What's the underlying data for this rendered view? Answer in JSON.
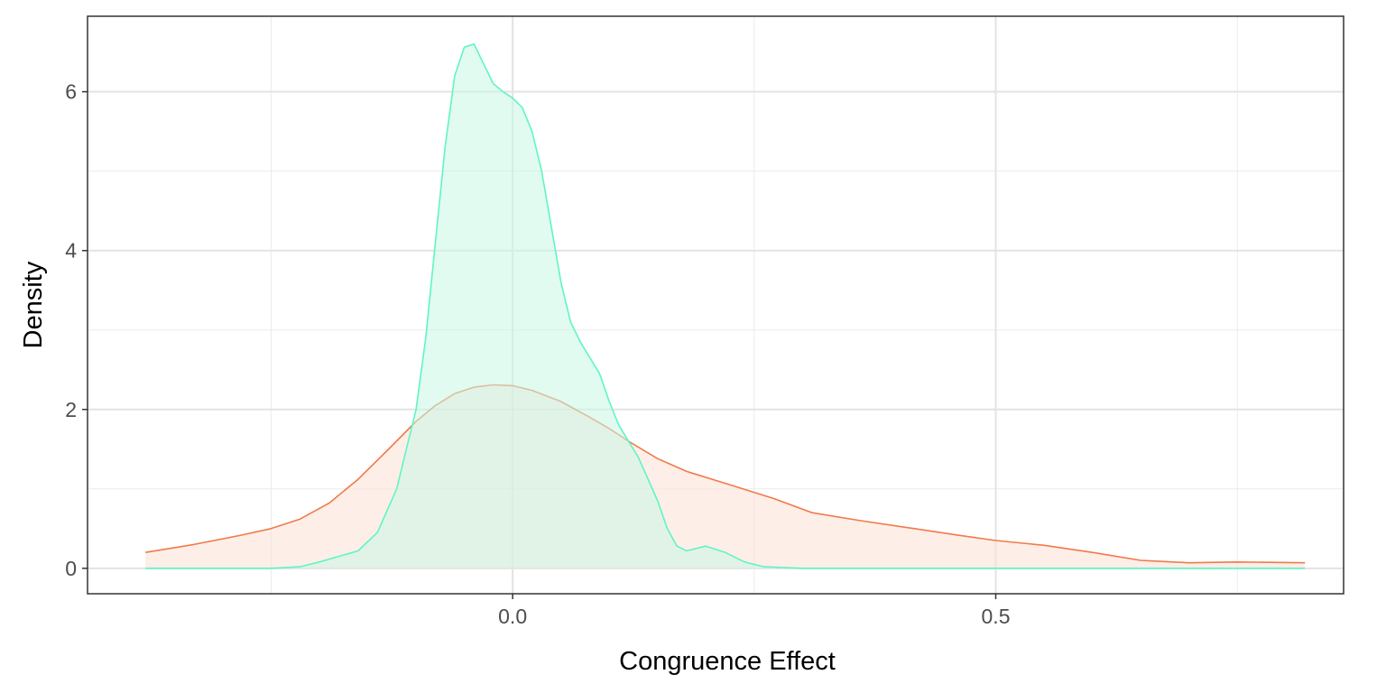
{
  "chart_data": {
    "type": "area",
    "xlabel": "Congruence Effect",
    "ylabel": "Density",
    "xlim": [
      -0.44,
      0.86
    ],
    "ylim": [
      -0.32,
      6.95
    ],
    "x_ticks": [
      0.0,
      0.5
    ],
    "x_tick_labels": [
      "0.0",
      "0.5"
    ],
    "x_minor_ticks": [
      -0.25,
      0.25,
      0.75
    ],
    "y_ticks": [
      0,
      2,
      4,
      6
    ],
    "y_tick_labels": [
      "0",
      "2",
      "4",
      "6"
    ],
    "y_minor_ticks": [
      1,
      3,
      5
    ],
    "grid": true,
    "legend": "none",
    "series": [
      {
        "line_color": "#f07a4a",
        "fill_color": "#fde0d6",
        "points": [
          [
            -0.38,
            0.2
          ],
          [
            -0.33,
            0.3
          ],
          [
            -0.28,
            0.42
          ],
          [
            -0.25,
            0.5
          ],
          [
            -0.22,
            0.62
          ],
          [
            -0.19,
            0.82
          ],
          [
            -0.16,
            1.12
          ],
          [
            -0.13,
            1.48
          ],
          [
            -0.1,
            1.85
          ],
          [
            -0.08,
            2.05
          ],
          [
            -0.06,
            2.2
          ],
          [
            -0.04,
            2.28
          ],
          [
            -0.02,
            2.31
          ],
          [
            0.0,
            2.3
          ],
          [
            0.02,
            2.24
          ],
          [
            0.05,
            2.1
          ],
          [
            0.08,
            1.9
          ],
          [
            0.1,
            1.76
          ],
          [
            0.12,
            1.6
          ],
          [
            0.15,
            1.38
          ],
          [
            0.18,
            1.22
          ],
          [
            0.22,
            1.07
          ],
          [
            0.27,
            0.88
          ],
          [
            0.31,
            0.7
          ],
          [
            0.36,
            0.6
          ],
          [
            0.41,
            0.51
          ],
          [
            0.46,
            0.42
          ],
          [
            0.5,
            0.35
          ],
          [
            0.55,
            0.29
          ],
          [
            0.6,
            0.2
          ],
          [
            0.65,
            0.1
          ],
          [
            0.7,
            0.07
          ],
          [
            0.75,
            0.08
          ],
          [
            0.82,
            0.07
          ]
        ]
      },
      {
        "line_color": "#5ff5c5",
        "fill_color": "#c8f7e6",
        "points": [
          [
            -0.38,
            0.0
          ],
          [
            -0.25,
            0.0
          ],
          [
            -0.22,
            0.02
          ],
          [
            -0.2,
            0.08
          ],
          [
            -0.18,
            0.15
          ],
          [
            -0.16,
            0.22
          ],
          [
            -0.14,
            0.45
          ],
          [
            -0.12,
            1.0
          ],
          [
            -0.1,
            2.0
          ],
          [
            -0.09,
            2.9
          ],
          [
            -0.08,
            4.1
          ],
          [
            -0.07,
            5.3
          ],
          [
            -0.06,
            6.2
          ],
          [
            -0.05,
            6.56
          ],
          [
            -0.04,
            6.6
          ],
          [
            -0.03,
            6.35
          ],
          [
            -0.02,
            6.1
          ],
          [
            -0.01,
            6.0
          ],
          [
            0.0,
            5.92
          ],
          [
            0.01,
            5.8
          ],
          [
            0.02,
            5.5
          ],
          [
            0.03,
            5.0
          ],
          [
            0.04,
            4.3
          ],
          [
            0.05,
            3.6
          ],
          [
            0.06,
            3.1
          ],
          [
            0.07,
            2.85
          ],
          [
            0.08,
            2.65
          ],
          [
            0.09,
            2.45
          ],
          [
            0.1,
            2.1
          ],
          [
            0.11,
            1.8
          ],
          [
            0.13,
            1.4
          ],
          [
            0.15,
            0.85
          ],
          [
            0.16,
            0.5
          ],
          [
            0.17,
            0.28
          ],
          [
            0.18,
            0.22
          ],
          [
            0.2,
            0.28
          ],
          [
            0.22,
            0.2
          ],
          [
            0.24,
            0.08
          ],
          [
            0.26,
            0.02
          ],
          [
            0.3,
            0.0
          ],
          [
            0.82,
            0.0
          ]
        ]
      }
    ]
  }
}
